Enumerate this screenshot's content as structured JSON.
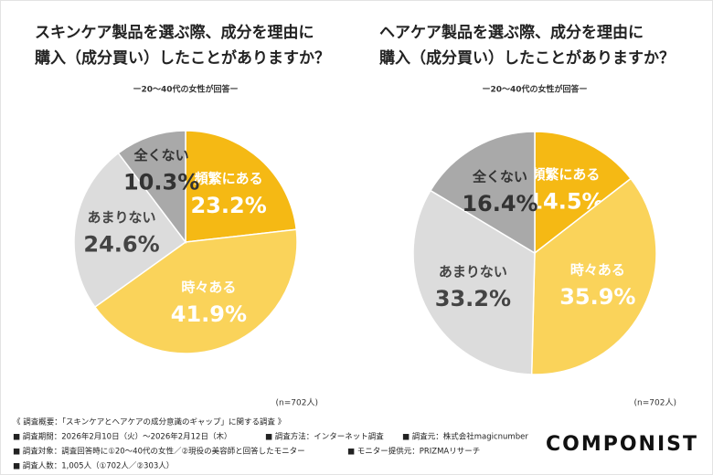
{
  "chart_data": [
    {
      "type": "pie",
      "title": [
        "スキンケア製品を選ぶ際、成分を理由に",
        "購入（成分買い）したことがありますか？"
      ],
      "subtitle": "ー20〜40代の女性が回答ー",
      "note": "(n=702人)",
      "categories": [
        "頻繁にある",
        "時々ある",
        "あまりない",
        "全くない"
      ],
      "values": [
        23.2,
        41.9,
        24.6,
        10.3
      ],
      "value_labels": [
        "23.2%",
        "41.9%",
        "24.6%",
        "10.3%"
      ],
      "colors": [
        "#f5b914",
        "#fad35a",
        "#dcdcdc",
        "#a9a9a9"
      ],
      "label_colors": [
        "#ffffff",
        "#ffffff",
        "#444444",
        "#333333"
      ]
    },
    {
      "type": "pie",
      "title": [
        "ヘアケア製品を選ぶ際、成分を理由に",
        "購入（成分買い）したことがありますか？"
      ],
      "subtitle": "ー20〜40代の女性が回答ー",
      "note": "(n=702人)",
      "categories": [
        "頻繁にある",
        "時々ある",
        "あまりない",
        "全くない"
      ],
      "values": [
        14.5,
        35.9,
        33.2,
        16.4
      ],
      "value_labels": [
        "14.5%",
        "35.9%",
        "33.2%",
        "16.4%"
      ],
      "colors": [
        "#f5b914",
        "#fad35a",
        "#dcdcdc",
        "#a9a9a9"
      ],
      "label_colors": [
        "#ffffff",
        "#ffffff",
        "#444444",
        "#333333"
      ]
    }
  ],
  "footer": {
    "heading": "《 調査概要：「スキンケアとヘアケアの成分意識のギャップ」に関する調査 》",
    "lines": [
      [
        "■ 調査期間：2026年2月10日（火）〜2026年2月12日（木）",
        "■ 調査方法：インターネット調査",
        "■ 調査元：株式会社magicnumber"
      ],
      [
        "■ 調査対象：調査回答時に①20〜40代の女性／②現役の美容師と回答したモニター",
        "■ モニター提供元：PRIZMAリサーチ"
      ],
      [
        "■ 調査人数：1,005人（①702人／②303人）"
      ]
    ],
    "logo": "COMPONIST"
  }
}
